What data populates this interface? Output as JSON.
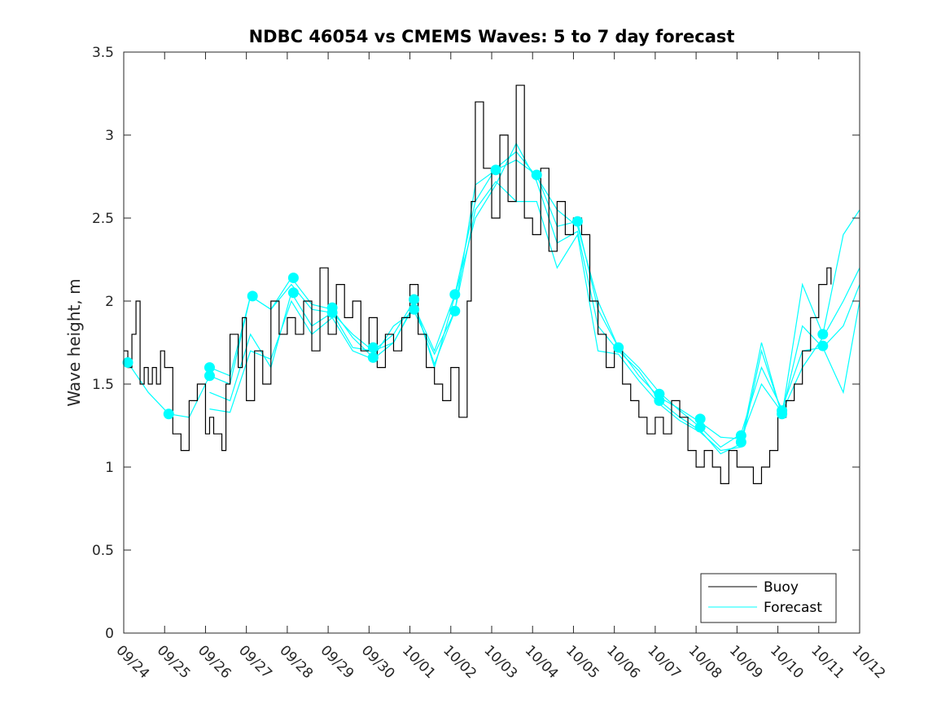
{
  "chart_data": {
    "type": "line",
    "title": "NDBC 46054 vs CMEMS Waves: 5 to 7 day forecast",
    "xlabel": "",
    "ylabel": "Wave height, m",
    "xlim": [
      0,
      18
    ],
    "ylim": [
      0,
      3.5
    ],
    "x_tick_labels": [
      "09/24",
      "09/25",
      "09/26",
      "09/27",
      "09/28",
      "09/29",
      "09/30",
      "10/01",
      "10/02",
      "10/03",
      "10/04",
      "10/05",
      "10/06",
      "10/07",
      "10/08",
      "10/09",
      "10/10",
      "10/11",
      "10/12"
    ],
    "y_ticks": [
      0,
      0.5,
      1,
      1.5,
      2,
      2.5,
      3,
      3.5
    ],
    "y_tick_labels": [
      "0",
      "0.5",
      "1",
      "1.5",
      "2",
      "2.5",
      "3",
      "3.5"
    ],
    "legend": {
      "location": "bottom-right",
      "entries": [
        {
          "label": "Buoy",
          "color": "#000000"
        },
        {
          "label": "Forecast",
          "color": "#00ffff"
        }
      ]
    },
    "series": [
      {
        "name": "Buoy",
        "color": "#000000",
        "x": [
          0,
          0.1,
          0.2,
          0.3,
          0.4,
          0.5,
          0.6,
          0.7,
          0.8,
          0.9,
          1.0,
          1.2,
          1.4,
          1.6,
          1.8,
          2.0,
          2.1,
          2.2,
          2.4,
          2.5,
          2.6,
          2.8,
          2.9,
          3.0,
          3.2,
          3.4,
          3.6,
          3.8,
          4.0,
          4.2,
          4.4,
          4.6,
          4.8,
          5.0,
          5.2,
          5.4,
          5.6,
          5.8,
          6.0,
          6.2,
          6.4,
          6.6,
          6.8,
          7.0,
          7.2,
          7.4,
          7.6,
          7.8,
          8.0,
          8.2,
          8.4,
          8.5,
          8.6,
          8.8,
          9.0,
          9.2,
          9.4,
          9.6,
          9.8,
          10.0,
          10.2,
          10.4,
          10.6,
          10.8,
          11.0,
          11.2,
          11.4,
          11.6,
          11.8,
          12.0,
          12.2,
          12.4,
          12.6,
          12.8,
          13.0,
          13.2,
          13.4,
          13.6,
          13.8,
          14.0,
          14.2,
          14.4,
          14.6,
          14.8,
          15.0,
          15.2,
          15.4,
          15.6,
          15.8,
          16.0,
          16.2,
          16.4,
          16.6,
          16.8,
          17.0,
          17.2,
          17.3
        ],
        "y": [
          1.7,
          1.6,
          1.8,
          2.0,
          1.5,
          1.6,
          1.5,
          1.6,
          1.5,
          1.7,
          1.6,
          1.2,
          1.1,
          1.4,
          1.5,
          1.2,
          1.3,
          1.2,
          1.1,
          1.5,
          1.8,
          1.6,
          1.9,
          1.4,
          1.7,
          1.5,
          2.0,
          1.8,
          1.9,
          1.8,
          2.0,
          1.7,
          2.2,
          1.8,
          2.1,
          1.9,
          2.0,
          1.7,
          1.9,
          1.6,
          1.8,
          1.7,
          1.9,
          2.1,
          1.8,
          1.6,
          1.5,
          1.4,
          1.6,
          1.3,
          2.0,
          2.6,
          3.2,
          2.8,
          2.5,
          3.0,
          2.6,
          3.3,
          2.5,
          2.4,
          2.8,
          2.3,
          2.6,
          2.4,
          2.5,
          2.4,
          2.0,
          1.8,
          1.6,
          1.7,
          1.5,
          1.4,
          1.3,
          1.2,
          1.3,
          1.2,
          1.4,
          1.3,
          1.1,
          1.0,
          1.1,
          1.0,
          0.9,
          1.1,
          1.0,
          1.0,
          0.9,
          1.0,
          1.1,
          1.3,
          1.4,
          1.5,
          1.7,
          1.9,
          2.1,
          2.2,
          2.1
        ]
      },
      {
        "name": "Forecast",
        "color": "#00ffff",
        "x": [
          0.1,
          0.6,
          1.1,
          1.6,
          2.1,
          2.6,
          3.1,
          3.6,
          4.1,
          4.6,
          5.1,
          5.6,
          6.1,
          6.6,
          7.1,
          7.6,
          8.1,
          8.6,
          9.1,
          9.6,
          10.1,
          10.6,
          11.1,
          11.6,
          12.1,
          12.6,
          13.1,
          13.6,
          14.1,
          14.6,
          15.1,
          15.6,
          16.1,
          16.6,
          17.1,
          17.6,
          18.0
        ],
        "y": [
          1.63,
          1.45,
          1.32,
          1.3,
          1.55,
          1.5,
          2.03,
          1.95,
          2.1,
          1.95,
          1.93,
          1.8,
          1.7,
          1.75,
          1.97,
          1.7,
          2.04,
          2.6,
          2.8,
          2.9,
          2.75,
          2.55,
          2.45,
          2.0,
          1.72,
          1.55,
          1.42,
          1.35,
          1.27,
          1.18,
          1.17,
          1.5,
          1.33,
          1.6,
          1.78,
          2.0,
          2.2
        ]
      },
      {
        "name": "Forecast",
        "color": "#00ffff",
        "x": [
          2.1,
          2.6,
          3.1,
          3.6,
          4.1,
          4.6,
          5.1,
          5.6,
          6.1,
          6.6,
          7.1,
          7.6,
          8.1,
          8.6,
          9.1,
          9.6,
          10.1,
          10.6,
          11.1,
          11.6,
          12.1,
          12.6,
          13.1,
          13.6,
          14.1,
          14.6,
          15.1,
          15.6,
          16.1,
          16.6,
          17.1,
          17.6,
          18.0
        ],
        "y": [
          1.6,
          1.55,
          2.03,
          1.95,
          2.14,
          1.98,
          1.95,
          1.78,
          1.66,
          1.85,
          1.94,
          1.68,
          1.94,
          2.7,
          2.79,
          2.85,
          2.76,
          2.45,
          2.48,
          1.95,
          1.72,
          1.6,
          1.45,
          1.34,
          1.24,
          1.12,
          1.2,
          1.6,
          1.35,
          1.7,
          1.72,
          1.85,
          2.1
        ]
      },
      {
        "name": "Forecast",
        "color": "#00ffff",
        "x": [
          2.1,
          2.6,
          3.1,
          3.6,
          4.1,
          4.6,
          5.1,
          5.6,
          6.1,
          6.6,
          7.1,
          7.6,
          8.1,
          8.6,
          9.1,
          9.6,
          10.1,
          10.6,
          11.1,
          11.6,
          12.1,
          12.6,
          13.1,
          13.6,
          14.1,
          14.6,
          15.1,
          15.6,
          16.1,
          16.6,
          17.1,
          17.6,
          18.0
        ],
        "y": [
          1.45,
          1.4,
          1.8,
          1.6,
          2.05,
          1.85,
          1.93,
          1.72,
          1.7,
          1.8,
          2.0,
          1.6,
          2.03,
          2.5,
          2.7,
          2.95,
          2.72,
          2.35,
          2.42,
          1.85,
          1.7,
          1.58,
          1.4,
          1.3,
          1.22,
          1.08,
          1.14,
          1.75,
          1.31,
          2.1,
          1.8,
          2.4,
          2.55
        ]
      },
      {
        "name": "Forecast",
        "color": "#00ffff",
        "x": [
          2.1,
          2.6,
          3.1,
          3.6,
          4.1,
          4.6,
          5.1,
          5.6,
          6.1,
          6.6,
          7.1,
          7.6,
          8.1,
          8.6,
          9.1,
          9.6,
          10.1,
          10.6,
          11.1,
          11.6,
          12.1,
          12.6,
          13.1,
          13.6,
          14.1,
          14.6,
          15.1,
          15.6,
          16.1,
          16.6,
          17.1,
          17.6,
          18.0
        ],
        "y": [
          1.35,
          1.33,
          1.7,
          1.65,
          2.0,
          1.8,
          1.9,
          1.7,
          1.65,
          1.75,
          1.98,
          1.62,
          1.94,
          2.55,
          2.72,
          2.6,
          2.6,
          2.2,
          2.4,
          1.7,
          1.68,
          1.52,
          1.38,
          1.28,
          1.21,
          1.1,
          1.12,
          1.7,
          1.32,
          1.85,
          1.72,
          1.45,
          2.0
        ]
      }
    ],
    "markers": {
      "name": "Forecast",
      "color": "#00ffff",
      "x": [
        0.1,
        1.1,
        2.1,
        2.1,
        3.15,
        4.15,
        4.15,
        5.1,
        5.1,
        6.1,
        6.1,
        7.1,
        7.1,
        8.1,
        8.1,
        9.1,
        10.1,
        11.1,
        12.1,
        13.1,
        13.1,
        14.1,
        14.1,
        15.1,
        15.1,
        16.1,
        16.1,
        17.1,
        17.1
      ],
      "y": [
        1.63,
        1.32,
        1.6,
        1.55,
        2.03,
        2.14,
        2.05,
        1.96,
        1.93,
        1.72,
        1.66,
        2.01,
        1.95,
        2.04,
        1.94,
        2.79,
        2.76,
        2.48,
        1.72,
        1.44,
        1.4,
        1.29,
        1.24,
        1.19,
        1.15,
        1.34,
        1.32,
        1.8,
        1.73
      ]
    }
  }
}
